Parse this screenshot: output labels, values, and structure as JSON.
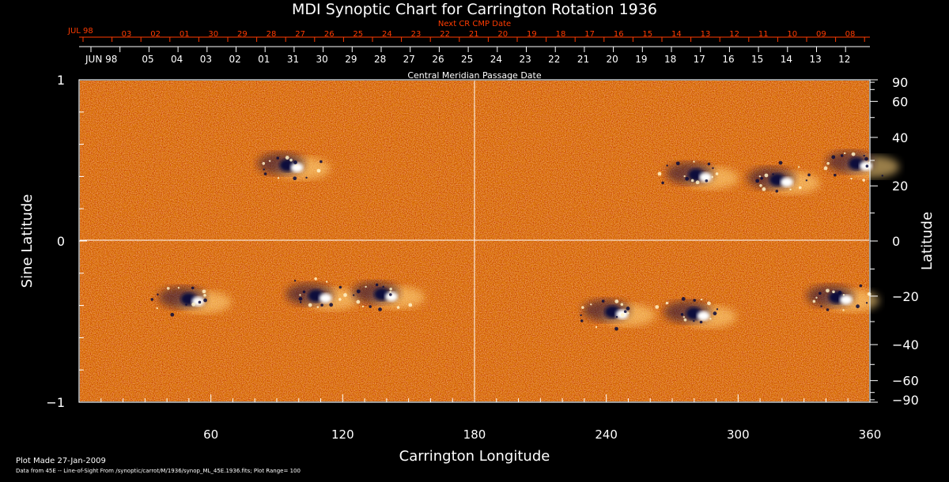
{
  "chart_data": {
    "type": "heatmap",
    "title": "MDI Synoptic Chart for Carrington Rotation 1936",
    "xlabel": "Carrington Longitude",
    "ylabel": "Sine Latitude",
    "ylabel_right": "Latitude",
    "xlim": [
      0,
      360
    ],
    "ylim": [
      -1,
      1
    ],
    "x_ticks": [
      60,
      120,
      180,
      240,
      300,
      360
    ],
    "y_ticks_left": [
      {
        "value": 1,
        "label": "1"
      },
      {
        "value": 0,
        "label": "0"
      },
      {
        "value": -1,
        "label": "−1"
      }
    ],
    "y_ticks_right": [
      90,
      60,
      40,
      20,
      0,
      -20,
      -40,
      -60,
      -90
    ],
    "y_ticks_right_labels": [
      "90",
      "60",
      "40",
      "20",
      "0",
      "−20",
      "−40",
      "−60",
      "−90"
    ],
    "grid_lines": {
      "x": [
        180
      ],
      "y": [
        0
      ]
    },
    "top_axis_next_cr": {
      "title": "Next CR CMP Date",
      "month_label": "JUL 98",
      "dates": [
        "03",
        "02",
        "01",
        "30",
        "29",
        "28",
        "27",
        "26",
        "25",
        "24",
        "23",
        "22",
        "21",
        "20",
        "19",
        "18",
        "17",
        "16",
        "15",
        "14",
        "13",
        "12",
        "11",
        "10",
        "09",
        "08"
      ]
    },
    "top_axis_cmp": {
      "title": "Central Meridian Passage Date",
      "month_label": "JUN 98",
      "dates": [
        "05",
        "04",
        "03",
        "02",
        "01",
        "31",
        "30",
        "29",
        "28",
        "27",
        "26",
        "25",
        "24",
        "23",
        "22",
        "21",
        "20",
        "19",
        "18",
        "17",
        "16",
        "15",
        "14",
        "13",
        "12"
      ]
    },
    "active_regions": [
      {
        "lon": 97,
        "sinlat": 0.47,
        "polarity": "bipole"
      },
      {
        "lon": 52,
        "sinlat": -0.36,
        "polarity": "bipole"
      },
      {
        "lon": 110,
        "sinlat": -0.34,
        "polarity": "bipole"
      },
      {
        "lon": 140,
        "sinlat": -0.33,
        "polarity": "bipole"
      },
      {
        "lon": 283,
        "sinlat": 0.41,
        "polarity": "bipole"
      },
      {
        "lon": 320,
        "sinlat": 0.38,
        "polarity": "bipole"
      },
      {
        "lon": 356,
        "sinlat": 0.48,
        "polarity": "bipole"
      },
      {
        "lon": 282,
        "sinlat": -0.45,
        "polarity": "bipole"
      },
      {
        "lon": 347,
        "sinlat": -0.35,
        "polarity": "bipole"
      },
      {
        "lon": 245,
        "sinlat": -0.44,
        "polarity": "bipole"
      }
    ],
    "colors": {
      "background_field": "#e8541a",
      "positive": "#ffffff",
      "negative": "#0b0b3a",
      "axis_top": "#ff3b00"
    }
  },
  "footer": {
    "plot_made": "Plot Made 27-Jan-2009",
    "source": "Data from 45E -- Line-of-Sight From /synoptic/carrot/M/1936/synop_ML_45E.1936.fits; Plot Range=  100"
  }
}
